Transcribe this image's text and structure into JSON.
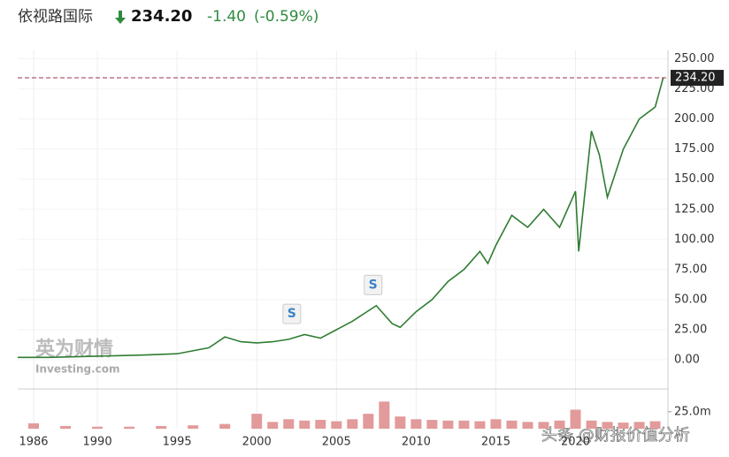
{
  "header": {
    "name": "依视路国际",
    "price": "234.20",
    "change": "-1.40",
    "change_pct": "(-0.59%)"
  },
  "watermarks": {
    "brand_cn": "英为财情",
    "brand_en": "Investing.com",
    "source": "头条 @财报价值分析"
  },
  "chart_data": {
    "type": "line",
    "series": [
      {
        "name": "依视路国际",
        "color": "#2f7d32",
        "x": [
          1985,
          1987,
          1990,
          1993,
          1995,
          1997,
          1998,
          1999,
          2000,
          2001,
          2002,
          2003,
          2004,
          2005,
          2006,
          2007.5,
          2008.5,
          2009,
          2010,
          2011,
          2012,
          2013,
          2014,
          2014.5,
          2015,
          2016,
          2017,
          2018,
          2019,
          2020,
          2020.2,
          2021,
          2021.5,
          2022,
          2023,
          2024,
          2025,
          2025.5
        ],
        "values": [
          2,
          2,
          3,
          4,
          5,
          10,
          19,
          15,
          14,
          15,
          17,
          21,
          18,
          25,
          32,
          45,
          30,
          27,
          40,
          50,
          65,
          75,
          90,
          80,
          95,
          120,
          110,
          125,
          110,
          140,
          90,
          190,
          170,
          135,
          175,
          200,
          210,
          234.2
        ]
      }
    ],
    "volume": {
      "color": "#e39a9a",
      "x": [
        1986,
        1988,
        1990,
        1992,
        1994,
        1996,
        1998,
        2000,
        2001,
        2002,
        2003,
        2004,
        2005,
        2006,
        2007,
        2008,
        2009,
        2010,
        2011,
        2012,
        2013,
        2014,
        2015,
        2016,
        2017,
        2018,
        2019,
        2020,
        2021,
        2022,
        2023,
        2024,
        2025
      ],
      "values": [
        8,
        4,
        3,
        3,
        4,
        5,
        7,
        22,
        10,
        14,
        12,
        13,
        11,
        14,
        22,
        40,
        18,
        14,
        13,
        12,
        12,
        11,
        14,
        12,
        10,
        10,
        12,
        28,
        12,
        10,
        9,
        10,
        11
      ],
      "ylim": [
        0,
        56
      ],
      "yticks": [
        {
          "value": 25,
          "label": "25.0m"
        }
      ]
    },
    "xlim": [
      1985,
      2025.8
    ],
    "xticks": [
      1986,
      1990,
      1995,
      2000,
      2005,
      2010,
      2015,
      2020
    ],
    "ylim": [
      -22,
      257
    ],
    "yticks": [
      {
        "value": 0,
        "label": "0.00"
      },
      {
        "value": 25,
        "label": "25.00"
      },
      {
        "value": 50,
        "label": "50.00"
      },
      {
        "value": 75,
        "label": "75.00"
      },
      {
        "value": 100,
        "label": "100.00"
      },
      {
        "value": 125,
        "label": "125.00"
      },
      {
        "value": 150,
        "label": "150.00"
      },
      {
        "value": 175,
        "label": "175.00"
      },
      {
        "value": 200,
        "label": "200.00"
      },
      {
        "value": 225,
        "label": "225.00"
      },
      {
        "value": 250,
        "label": "250.00"
      }
    ],
    "last_price": {
      "value": 234.2,
      "label": "234.20"
    },
    "annotations": [
      {
        "x": 2002.2,
        "y": 22,
        "text": "S"
      },
      {
        "x": 2007.3,
        "y": 46,
        "text": "S"
      }
    ],
    "grid": true
  }
}
